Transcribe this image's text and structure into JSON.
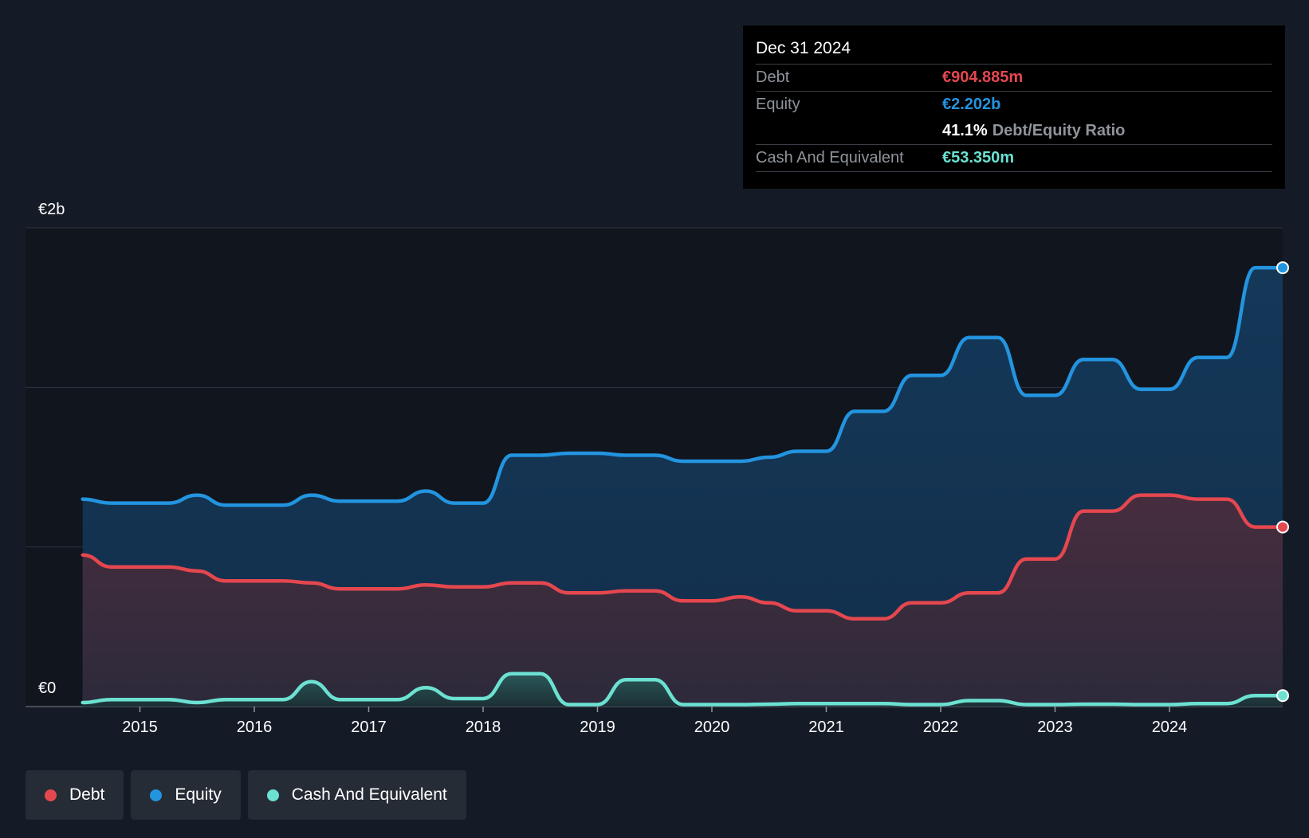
{
  "tooltip": {
    "date": "Dec 31 2024",
    "debt_label": "Debt",
    "debt_value": "€904.885m",
    "equity_label": "Equity",
    "equity_value": "€2.202b",
    "ratio_value": "41.1%",
    "ratio_label": "Debt/Equity Ratio",
    "cash_label": "Cash And Equivalent",
    "cash_value": "€53.350m"
  },
  "legend": {
    "items": [
      {
        "label": "Debt",
        "color": "#e5474f"
      },
      {
        "label": "Equity",
        "color": "#2394df"
      },
      {
        "label": "Cash And Equivalent",
        "color": "#6ce1d2"
      }
    ]
  },
  "colors": {
    "debt": "#e5474f",
    "equity": "#2394df",
    "cash": "#6ce1d2",
    "background": "#151b26",
    "plot_background": "#11151e"
  },
  "chart_data": {
    "type": "area",
    "ylim": [
      0,
      2.4
    ],
    "y_tick_labels": [
      {
        "value": 2.4,
        "label": "€2b"
      },
      {
        "value": 0,
        "label": "€0"
      }
    ],
    "gridlines": [
      0,
      0.8,
      1.6,
      2.4
    ],
    "x_ticks": [
      {
        "value": 2015,
        "label": "2015"
      },
      {
        "value": 2016,
        "label": "2016"
      },
      {
        "value": 2017,
        "label": "2017"
      },
      {
        "value": 2018,
        "label": "2018"
      },
      {
        "value": 2019,
        "label": "2019"
      },
      {
        "value": 2020,
        "label": "2020"
      },
      {
        "value": 2021,
        "label": "2021"
      },
      {
        "value": 2022,
        "label": "2022"
      },
      {
        "value": 2023,
        "label": "2023"
      },
      {
        "value": 2024,
        "label": "2024"
      }
    ],
    "xlim": [
      2014.0,
      2024.99
    ],
    "series": [
      {
        "name": "Equity",
        "points": [
          [
            2014.5,
            1.04
          ],
          [
            2014.75,
            1.02
          ],
          [
            2015.25,
            1.02
          ],
          [
            2015.5,
            1.06
          ],
          [
            2015.75,
            1.01
          ],
          [
            2016.25,
            1.01
          ],
          [
            2016.5,
            1.06
          ],
          [
            2016.75,
            1.03
          ],
          [
            2017.25,
            1.03
          ],
          [
            2017.5,
            1.08
          ],
          [
            2017.75,
            1.02
          ],
          [
            2018.0,
            1.02
          ],
          [
            2018.25,
            1.26
          ],
          [
            2018.5,
            1.26
          ],
          [
            2018.75,
            1.27
          ],
          [
            2019.0,
            1.27
          ],
          [
            2019.25,
            1.26
          ],
          [
            2019.5,
            1.26
          ],
          [
            2019.75,
            1.23
          ],
          [
            2020.0,
            1.23
          ],
          [
            2020.25,
            1.23
          ],
          [
            2020.5,
            1.25
          ],
          [
            2020.75,
            1.28
          ],
          [
            2021.0,
            1.28
          ],
          [
            2021.25,
            1.48
          ],
          [
            2021.5,
            1.48
          ],
          [
            2021.75,
            1.66
          ],
          [
            2022.0,
            1.66
          ],
          [
            2022.25,
            1.85
          ],
          [
            2022.5,
            1.85
          ],
          [
            2022.75,
            1.56
          ],
          [
            2023.0,
            1.56
          ],
          [
            2023.25,
            1.74
          ],
          [
            2023.5,
            1.74
          ],
          [
            2023.75,
            1.59
          ],
          [
            2024.0,
            1.59
          ],
          [
            2024.25,
            1.75
          ],
          [
            2024.5,
            1.75
          ],
          [
            2024.75,
            2.2
          ],
          [
            2024.99,
            2.2
          ]
        ]
      },
      {
        "name": "Debt",
        "points": [
          [
            2014.5,
            0.76
          ],
          [
            2014.75,
            0.7
          ],
          [
            2015.25,
            0.7
          ],
          [
            2015.5,
            0.68
          ],
          [
            2015.75,
            0.63
          ],
          [
            2016.25,
            0.63
          ],
          [
            2016.5,
            0.62
          ],
          [
            2016.75,
            0.59
          ],
          [
            2017.25,
            0.59
          ],
          [
            2017.5,
            0.61
          ],
          [
            2017.75,
            0.6
          ],
          [
            2018.0,
            0.6
          ],
          [
            2018.25,
            0.62
          ],
          [
            2018.5,
            0.62
          ],
          [
            2018.75,
            0.57
          ],
          [
            2019.0,
            0.57
          ],
          [
            2019.25,
            0.58
          ],
          [
            2019.5,
            0.58
          ],
          [
            2019.75,
            0.53
          ],
          [
            2020.0,
            0.53
          ],
          [
            2020.25,
            0.55
          ],
          [
            2020.5,
            0.52
          ],
          [
            2020.75,
            0.48
          ],
          [
            2021.0,
            0.48
          ],
          [
            2021.25,
            0.44
          ],
          [
            2021.5,
            0.44
          ],
          [
            2021.75,
            0.52
          ],
          [
            2022.0,
            0.52
          ],
          [
            2022.25,
            0.57
          ],
          [
            2022.5,
            0.57
          ],
          [
            2022.75,
            0.74
          ],
          [
            2023.0,
            0.74
          ],
          [
            2023.25,
            0.98
          ],
          [
            2023.5,
            0.98
          ],
          [
            2023.75,
            1.06
          ],
          [
            2024.0,
            1.06
          ],
          [
            2024.25,
            1.04
          ],
          [
            2024.5,
            1.04
          ],
          [
            2024.75,
            0.9
          ],
          [
            2024.99,
            0.9
          ]
        ]
      },
      {
        "name": "Cash And Equivalent",
        "points": [
          [
            2014.5,
            0.02
          ],
          [
            2014.75,
            0.035
          ],
          [
            2015.25,
            0.035
          ],
          [
            2015.5,
            0.02
          ],
          [
            2015.75,
            0.035
          ],
          [
            2016.25,
            0.035
          ],
          [
            2016.5,
            0.125
          ],
          [
            2016.75,
            0.035
          ],
          [
            2017.25,
            0.035
          ],
          [
            2017.5,
            0.095
          ],
          [
            2017.75,
            0.04
          ],
          [
            2018.0,
            0.04
          ],
          [
            2018.25,
            0.165
          ],
          [
            2018.5,
            0.165
          ],
          [
            2018.75,
            0.01
          ],
          [
            2019.0,
            0.01
          ],
          [
            2019.25,
            0.135
          ],
          [
            2019.5,
            0.135
          ],
          [
            2019.75,
            0.01
          ],
          [
            2020.0,
            0.01
          ],
          [
            2020.25,
            0.01
          ],
          [
            2020.5,
            0.012
          ],
          [
            2020.75,
            0.015
          ],
          [
            2021.0,
            0.015
          ],
          [
            2021.25,
            0.015
          ],
          [
            2021.5,
            0.015
          ],
          [
            2021.75,
            0.01
          ],
          [
            2022.0,
            0.01
          ],
          [
            2022.25,
            0.03
          ],
          [
            2022.5,
            0.03
          ],
          [
            2022.75,
            0.01
          ],
          [
            2023.0,
            0.01
          ],
          [
            2023.25,
            0.012
          ],
          [
            2023.5,
            0.012
          ],
          [
            2023.75,
            0.01
          ],
          [
            2024.0,
            0.01
          ],
          [
            2024.25,
            0.015
          ],
          [
            2024.5,
            0.015
          ],
          [
            2024.75,
            0.055
          ],
          [
            2024.99,
            0.055
          ]
        ]
      }
    ]
  }
}
